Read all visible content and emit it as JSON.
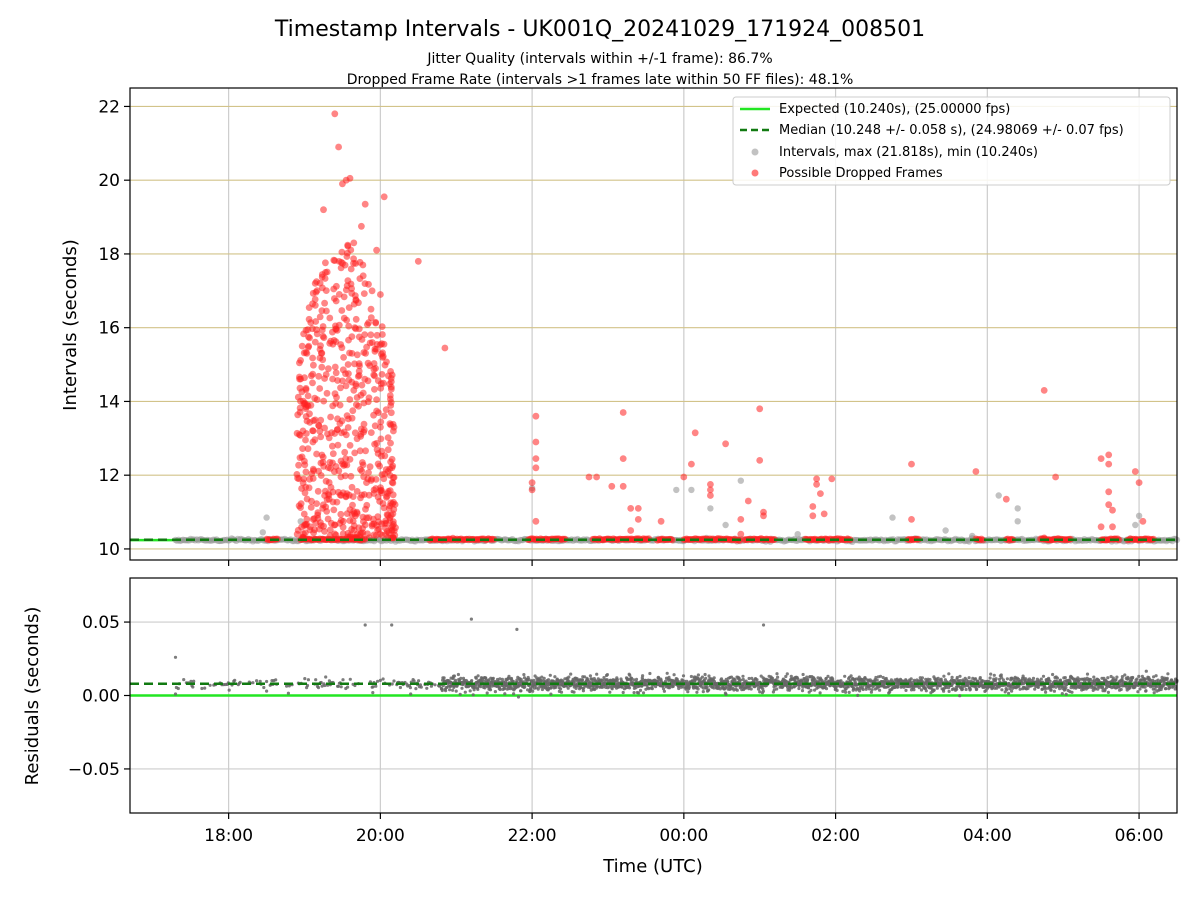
{
  "title": "Timestamp Intervals - UK001Q_20241029_171924_008501",
  "subtitle_1": "Jitter Quality (intervals within +/-1 frame): 86.7%",
  "subtitle_2": "Dropped Frame Rate (intervals >1 frames late within 50 FF files): 48.1%",
  "colors": {
    "expected": "#22e622",
    "median": "#117a11",
    "intervals": "#999999",
    "dropped": "#ff2020",
    "residual_points": "#666666",
    "hgrid_top": "#d2c38a",
    "grid": "#cccccc"
  },
  "chart_data": [
    {
      "type": "scatter",
      "panel": "top",
      "ylabel": "Intervals (seconds)",
      "xlabel": "",
      "x_unit": "hours since 00:00 UTC (negative = previous day)",
      "xlim": [
        -7.3,
        6.5
      ],
      "ylim": [
        9.7,
        22.5
      ],
      "yticks": [
        10,
        12,
        14,
        16,
        18,
        20,
        22
      ],
      "yticklabels": [
        "10",
        "12",
        "14",
        "16",
        "18",
        "20",
        "22"
      ],
      "xtick_values": [
        -6,
        -4,
        -2,
        0,
        2,
        4,
        6
      ],
      "grid": "vertical light gray, horizontal tan at major ticks",
      "legend": "upper right",
      "legend_entries": [
        "Expected (10.240s), (25.00000 fps)",
        "Median (10.248 +/- 0.058 s), (24.98069 +/- 0.07 fps)",
        "Intervals, max (21.818s), min (10.240s)",
        "Possible Dropped Frames"
      ],
      "lines": {
        "expected": 10.24,
        "median": 10.248
      },
      "intervals": {
        "x_range": [
          -6.7,
          6.5
        ],
        "baseline": 10.24,
        "max": 21.818,
        "min": 10.24,
        "outliers": [
          [
            -5.55,
            10.45
          ],
          [
            -5.5,
            10.85
          ],
          [
            -5.05,
            10.75
          ],
          [
            -2.0,
            11.65
          ],
          [
            -0.1,
            11.6
          ],
          [
            0.1,
            11.6
          ],
          [
            0.35,
            11.1
          ],
          [
            0.55,
            10.65
          ],
          [
            0.75,
            11.85
          ],
          [
            1.5,
            10.4
          ],
          [
            2.75,
            10.85
          ],
          [
            3.45,
            10.5
          ],
          [
            4.15,
            11.45
          ],
          [
            4.4,
            11.1
          ],
          [
            4.4,
            10.75
          ],
          [
            6.0,
            10.9
          ],
          [
            5.95,
            10.65
          ],
          [
            3.8,
            10.35
          ]
        ]
      },
      "dropped_frames": {
        "baseline_value": 10.26,
        "baseline_clusters": [
          [
            -5.5,
            -5.35
          ],
          [
            -5.05,
            -4.2
          ],
          [
            -3.35,
            -2.5
          ],
          [
            -2.05,
            -1.55
          ],
          [
            -1.2,
            -0.45
          ],
          [
            -0.35,
            -0.15
          ],
          [
            0.0,
            0.75
          ],
          [
            0.8,
            1.2
          ],
          [
            1.6,
            2.2
          ],
          [
            2.95,
            3.1
          ],
          [
            3.85,
            3.95
          ],
          [
            4.25,
            4.35
          ],
          [
            4.7,
            5.1
          ],
          [
            5.5,
            5.75
          ],
          [
            5.85,
            6.2
          ]
        ],
        "burst": {
          "x_range": [
            -5.1,
            -3.8
          ],
          "y_range": [
            10.3,
            18.3
          ],
          "count": 600
        },
        "extra_points": [
          [
            -4.15,
            14.1
          ],
          [
            -4.05,
            14.05
          ],
          [
            -4.0,
            13.3
          ],
          [
            -4.0,
            16.9
          ],
          [
            -3.9,
            12.1
          ],
          [
            -3.15,
            15.45
          ],
          [
            -2.0,
            11.8
          ],
          [
            -1.95,
            13.6
          ],
          [
            -1.95,
            12.9
          ],
          [
            -1.95,
            12.45
          ],
          [
            -1.95,
            12.2
          ],
          [
            -1.95,
            10.75
          ],
          [
            -2.0,
            11.6
          ],
          [
            -1.25,
            11.95
          ],
          [
            -1.15,
            11.95
          ],
          [
            -0.95,
            11.7
          ],
          [
            -0.8,
            11.7
          ],
          [
            -0.8,
            12.45
          ],
          [
            -0.8,
            13.7
          ],
          [
            -0.7,
            11.1
          ],
          [
            -0.7,
            10.5
          ],
          [
            -0.6,
            11.1
          ],
          [
            -0.6,
            10.8
          ],
          [
            -0.3,
            10.75
          ],
          [
            0.0,
            11.95
          ],
          [
            0.1,
            12.3
          ],
          [
            0.15,
            13.15
          ],
          [
            0.35,
            11.75
          ],
          [
            0.35,
            11.6
          ],
          [
            0.35,
            11.45
          ],
          [
            0.55,
            12.85
          ],
          [
            0.75,
            10.8
          ],
          [
            0.75,
            10.4
          ],
          [
            0.85,
            11.3
          ],
          [
            1.0,
            12.4
          ],
          [
            1.0,
            13.8
          ],
          [
            1.05,
            11.0
          ],
          [
            1.05,
            10.9
          ],
          [
            1.7,
            11.15
          ],
          [
            1.7,
            10.9
          ],
          [
            1.75,
            11.9
          ],
          [
            1.75,
            11.75
          ],
          [
            1.8,
            11.5
          ],
          [
            1.85,
            10.95
          ],
          [
            1.95,
            11.9
          ],
          [
            3.0,
            12.3
          ],
          [
            3.0,
            10.8
          ],
          [
            3.85,
            12.1
          ],
          [
            4.25,
            11.35
          ],
          [
            4.75,
            14.3
          ],
          [
            4.75,
            10.3
          ],
          [
            4.9,
            11.95
          ],
          [
            5.5,
            12.45
          ],
          [
            5.6,
            12.55
          ],
          [
            5.6,
            12.3
          ],
          [
            5.6,
            11.55
          ],
          [
            5.6,
            11.2
          ],
          [
            5.65,
            11.05
          ],
          [
            5.65,
            10.6
          ],
          [
            5.5,
            10.6
          ],
          [
            5.95,
            12.1
          ],
          [
            6.0,
            11.8
          ],
          [
            6.05,
            10.75
          ]
        ]
      }
    },
    {
      "type": "scatter",
      "panel": "bottom",
      "ylabel": "Residuals (seconds)",
      "xlabel": "Time (UTC)",
      "xlim": [
        -7.3,
        6.5
      ],
      "ylim": [
        -0.08,
        0.08
      ],
      "yticks": [
        -0.05,
        0.0,
        0.05
      ],
      "yticklabels": [
        "−0.05",
        "0.00",
        "0.05"
      ],
      "xticks": [
        "18:00",
        "20:00",
        "22:00",
        "00:00",
        "02:00",
        "04:00",
        "06:00"
      ],
      "xtick_values": [
        -6,
        -4,
        -2,
        0,
        2,
        4,
        6
      ],
      "grid": true,
      "lines": {
        "expected_residual": 0.0,
        "median_residual": 0.008
      },
      "residuals": {
        "sparse_range": [
          -6.7,
          -3.2
        ],
        "dense_range": [
          -3.2,
          6.5
        ],
        "center": 0.008,
        "spread_sparse": 0.002,
        "spread_dense": 0.004,
        "outliers": [
          [
            -6.7,
            0.026
          ],
          [
            -4.2,
            0.048
          ],
          [
            -3.85,
            0.048
          ],
          [
            -2.8,
            0.052
          ],
          [
            -2.2,
            0.045
          ],
          [
            1.05,
            0.048
          ],
          [
            -6.7,
            0.001
          ],
          [
            -5.5,
            0.003
          ],
          [
            -4.1,
            0.002
          ],
          [
            -3.6,
            0.001
          ],
          [
            -3.0,
            0.003
          ]
        ]
      }
    }
  ]
}
